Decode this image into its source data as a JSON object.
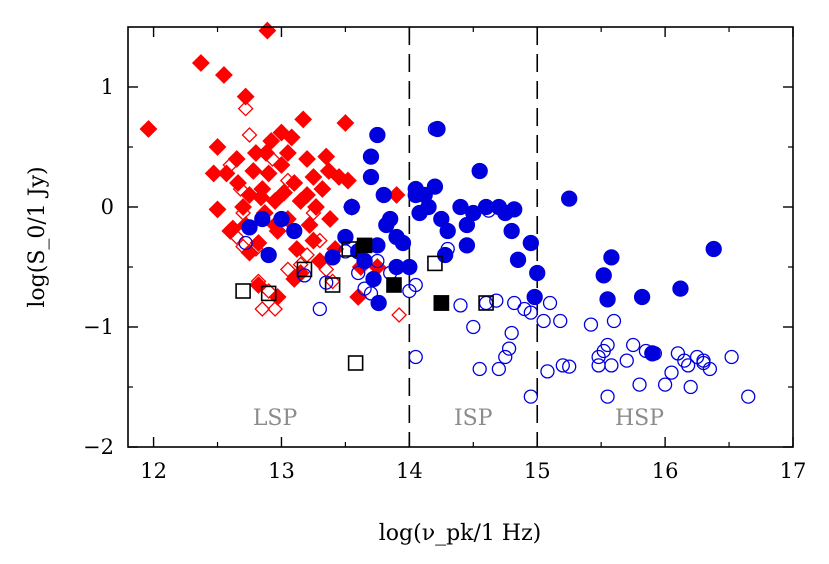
{
  "chart_data": {
    "type": "scatter",
    "xlabel": "log(ν_pk/1 Hz)",
    "ylabel": "log(S_0/1 Jy)",
    "xlim": [
      11.8,
      17
    ],
    "ylim": [
      -2,
      1.5
    ],
    "xticks": [
      12,
      13,
      14,
      15,
      16,
      17
    ],
    "yticks": [
      -2,
      -1,
      0,
      1
    ],
    "x_tick_labels": [
      "12",
      "13",
      "14",
      "15",
      "16",
      "17"
    ],
    "y_tick_labels": [
      "−2",
      "−1",
      "0",
      "1"
    ],
    "grid": false,
    "legend": "none",
    "vertical_lines": [
      14,
      15
    ],
    "regions": [
      {
        "label": "LSP",
        "x": 12.95,
        "y": -1.75
      },
      {
        "label": "ISP",
        "x": 14.5,
        "y": -1.75
      },
      {
        "label": "HSP",
        "x": 15.8,
        "y": -1.75
      }
    ],
    "colors": {
      "red": "#ff0000",
      "blue": "#0000dd",
      "black": "#000000",
      "region": "#8c8c8c"
    },
    "series": [
      {
        "marker": "diamond",
        "filled": true,
        "color": "#ff0000",
        "points": [
          [
            11.96,
            0.65
          ],
          [
            12.37,
            1.2
          ],
          [
            12.55,
            1.1
          ],
          [
            12.89,
            1.47
          ],
          [
            12.72,
            0.92
          ],
          [
            12.5,
            0.5
          ],
          [
            12.47,
            0.28
          ],
          [
            12.57,
            0.28
          ],
          [
            12.5,
            -0.02
          ],
          [
            12.65,
            0.4
          ],
          [
            12.66,
            0.2
          ],
          [
            12.7,
            0.0
          ],
          [
            12.6,
            -0.2
          ],
          [
            12.72,
            -0.15
          ],
          [
            12.75,
            0.1
          ],
          [
            12.78,
            0.3
          ],
          [
            12.8,
            0.45
          ],
          [
            12.82,
            -0.3
          ],
          [
            12.85,
            0.15
          ],
          [
            12.87,
            -0.05
          ],
          [
            12.9,
            0.28
          ],
          [
            12.92,
            0.55
          ],
          [
            12.95,
            0.05
          ],
          [
            12.97,
            -0.2
          ],
          [
            13.0,
            0.35
          ],
          [
            13.02,
            0.12
          ],
          [
            13.05,
            -0.1
          ],
          [
            13.08,
            0.58
          ],
          [
            13.1,
            0.2
          ],
          [
            13.12,
            -0.35
          ],
          [
            13.15,
            0.05
          ],
          [
            13.17,
            0.73
          ],
          [
            13.2,
            0.4
          ],
          [
            13.22,
            -0.15
          ],
          [
            13.25,
            0.25
          ],
          [
            13.27,
            0.0
          ],
          [
            13.3,
            -0.45
          ],
          [
            13.32,
            0.15
          ],
          [
            13.35,
            0.42
          ],
          [
            13.37,
            0.3
          ],
          [
            13.1,
            -0.6
          ],
          [
            13.15,
            -0.55
          ],
          [
            12.97,
            -0.75
          ],
          [
            12.82,
            -0.65
          ],
          [
            13.05,
            0.45
          ],
          [
            12.88,
            0.45
          ],
          [
            12.84,
            0.08
          ],
          [
            12.95,
            -0.15
          ],
          [
            13.0,
            0.62
          ],
          [
            13.45,
            0.25
          ],
          [
            13.5,
            0.7
          ],
          [
            13.52,
            0.22
          ],
          [
            13.55,
            0.0
          ],
          [
            13.6,
            -0.75
          ],
          [
            13.75,
            -0.5
          ],
          [
            13.62,
            -0.5
          ],
          [
            13.9,
            0.1
          ],
          [
            13.42,
            -0.35
          ],
          [
            13.38,
            -0.1
          ],
          [
            12.62,
            -0.18
          ],
          [
            12.75,
            -0.38
          ],
          [
            13.25,
            -0.28
          ],
          [
            13.2,
            0.1
          ]
        ]
      },
      {
        "marker": "diamond",
        "filled": false,
        "color": "#ff0000",
        "points": [
          [
            12.72,
            0.82
          ],
          [
            12.75,
            0.6
          ],
          [
            12.6,
            0.35
          ],
          [
            12.68,
            0.15
          ],
          [
            12.7,
            -0.05
          ],
          [
            12.65,
            -0.25
          ],
          [
            12.7,
            -0.33
          ],
          [
            12.8,
            -0.35
          ],
          [
            12.82,
            -0.62
          ],
          [
            12.85,
            -0.85
          ],
          [
            12.9,
            -0.7
          ],
          [
            12.95,
            -0.85
          ],
          [
            13.05,
            -0.52
          ],
          [
            13.15,
            -0.48
          ],
          [
            13.2,
            -0.4
          ],
          [
            13.3,
            -0.28
          ],
          [
            13.35,
            -0.52
          ],
          [
            13.4,
            -0.62
          ],
          [
            12.93,
            0.4
          ],
          [
            13.05,
            0.22
          ],
          [
            13.92,
            -0.9
          ],
          [
            13.25,
            -0.05
          ]
        ]
      },
      {
        "marker": "circle",
        "filled": true,
        "color": "#0000dd",
        "points": [
          [
            12.75,
            -0.17
          ],
          [
            12.85,
            -0.1
          ],
          [
            12.9,
            -0.4
          ],
          [
            13.1,
            -0.2
          ],
          [
            13.4,
            -0.42
          ],
          [
            13.65,
            -0.45
          ],
          [
            13.75,
            0.6
          ],
          [
            13.7,
            0.42
          ],
          [
            13.7,
            0.25
          ],
          [
            13.8,
            0.1
          ],
          [
            13.85,
            -0.1
          ],
          [
            13.82,
            -0.15
          ],
          [
            13.75,
            -0.32
          ],
          [
            13.6,
            -0.37
          ],
          [
            13.55,
            0.0
          ],
          [
            13.5,
            -0.25
          ],
          [
            13.72,
            -0.6
          ],
          [
            13.76,
            -0.8
          ],
          [
            13.9,
            -0.25
          ],
          [
            13.95,
            -0.3
          ],
          [
            14.05,
            0.15
          ],
          [
            14.08,
            -0.05
          ],
          [
            14.12,
            0.1
          ],
          [
            14.15,
            0.0
          ],
          [
            14.2,
            0.17
          ],
          [
            14.25,
            -0.1
          ],
          [
            14.28,
            -0.4
          ],
          [
            14.22,
            0.65
          ],
          [
            14.3,
            -0.2
          ],
          [
            14.4,
            0.0
          ],
          [
            14.45,
            -0.15
          ],
          [
            14.45,
            -0.32
          ],
          [
            14.5,
            -0.05
          ],
          [
            14.55,
            0.3
          ],
          [
            14.6,
            0.0
          ],
          [
            14.7,
            0.0
          ],
          [
            14.75,
            -0.05
          ],
          [
            14.8,
            -0.2
          ],
          [
            14.82,
            -0.02
          ],
          [
            14.85,
            -0.44
          ],
          [
            14.95,
            -0.3
          ],
          [
            15.0,
            -0.55
          ],
          [
            14.98,
            -0.75
          ],
          [
            15.25,
            0.07
          ],
          [
            15.52,
            -0.57
          ],
          [
            15.55,
            -0.77
          ],
          [
            15.58,
            -0.42
          ],
          [
            15.82,
            -0.75
          ],
          [
            15.9,
            -1.22
          ],
          [
            16.12,
            -0.68
          ],
          [
            16.38,
            -0.35
          ],
          [
            13.0,
            -0.1
          ],
          [
            13.9,
            -0.5
          ],
          [
            14.0,
            -0.5
          ],
          [
            14.05,
            0.1
          ]
        ]
      },
      {
        "marker": "circle",
        "filled": false,
        "color": "#0000dd",
        "points": [
          [
            12.72,
            -0.3
          ],
          [
            13.18,
            -0.57
          ],
          [
            13.35,
            -0.63
          ],
          [
            13.3,
            -0.85
          ],
          [
            13.5,
            -0.37
          ],
          [
            13.6,
            -0.55
          ],
          [
            13.65,
            -0.68
          ],
          [
            13.7,
            -0.72
          ],
          [
            13.75,
            -0.45
          ],
          [
            13.85,
            -0.55
          ],
          [
            14.0,
            -0.7
          ],
          [
            14.05,
            -0.65
          ],
          [
            14.05,
            -1.25
          ],
          [
            14.2,
            0.65
          ],
          [
            14.25,
            -0.8
          ],
          [
            14.3,
            -0.35
          ],
          [
            14.4,
            -0.82
          ],
          [
            14.5,
            -1.0
          ],
          [
            14.55,
            -1.35
          ],
          [
            14.6,
            -0.8
          ],
          [
            14.62,
            -0.03
          ],
          [
            14.68,
            -0.78
          ],
          [
            14.7,
            -1.35
          ],
          [
            14.75,
            -1.25
          ],
          [
            14.78,
            -1.18
          ],
          [
            14.8,
            -1.05
          ],
          [
            14.82,
            -0.8
          ],
          [
            14.9,
            -0.85
          ],
          [
            14.95,
            -0.88
          ],
          [
            14.95,
            -1.58
          ],
          [
            15.05,
            -0.95
          ],
          [
            15.08,
            -1.37
          ],
          [
            15.1,
            -0.8
          ],
          [
            15.18,
            -0.95
          ],
          [
            15.2,
            -1.32
          ],
          [
            15.25,
            -1.33
          ],
          [
            15.42,
            -0.98
          ],
          [
            15.48,
            -1.25
          ],
          [
            15.48,
            -1.32
          ],
          [
            15.52,
            -1.2
          ],
          [
            15.55,
            -1.15
          ],
          [
            15.58,
            -1.32
          ],
          [
            15.6,
            -0.95
          ],
          [
            15.7,
            -1.28
          ],
          [
            15.75,
            -1.15
          ],
          [
            15.8,
            -1.48
          ],
          [
            15.85,
            -1.2
          ],
          [
            15.92,
            -1.22
          ],
          [
            16.0,
            -1.48
          ],
          [
            16.05,
            -1.38
          ],
          [
            16.1,
            -1.22
          ],
          [
            16.15,
            -1.28
          ],
          [
            16.18,
            -1.32
          ],
          [
            16.2,
            -1.5
          ],
          [
            16.25,
            -1.25
          ],
          [
            16.3,
            -1.28
          ],
          [
            16.35,
            -1.35
          ],
          [
            16.52,
            -1.25
          ],
          [
            16.65,
            -1.58
          ],
          [
            15.55,
            -1.58
          ],
          [
            16.3,
            -1.3
          ]
        ]
      },
      {
        "marker": "square",
        "filled": true,
        "color": "#000000",
        "points": [
          [
            13.65,
            -0.32
          ],
          [
            13.88,
            -0.65
          ],
          [
            14.25,
            -0.8
          ]
        ]
      },
      {
        "marker": "square",
        "filled": false,
        "color": "#000000",
        "points": [
          [
            12.7,
            -0.7
          ],
          [
            12.9,
            -0.72
          ],
          [
            13.18,
            -0.52
          ],
          [
            13.4,
            -0.65
          ],
          [
            13.53,
            -0.35
          ],
          [
            13.58,
            -1.3
          ],
          [
            14.2,
            -0.47
          ],
          [
            14.25,
            -0.8
          ],
          [
            14.6,
            -0.8
          ]
        ]
      }
    ]
  }
}
